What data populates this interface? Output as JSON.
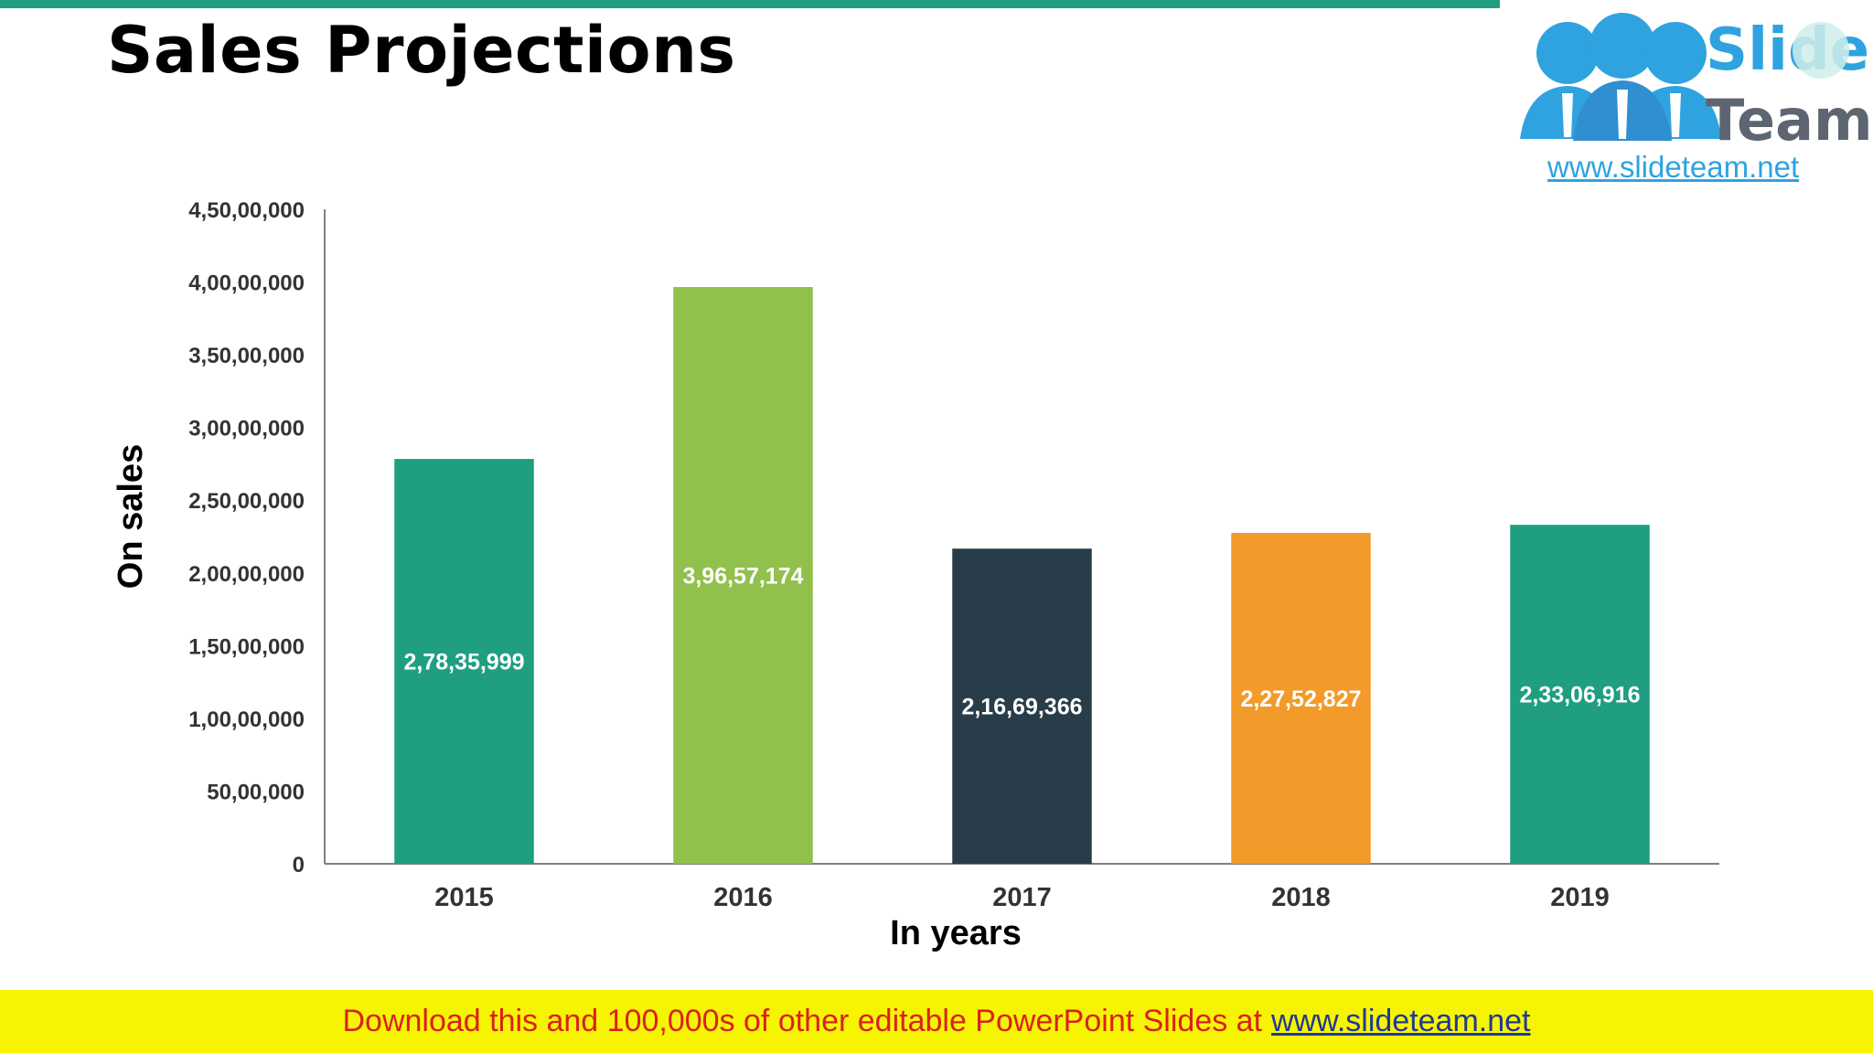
{
  "slide": {
    "title": "Sales Projections",
    "accent_color": "#1f9e82"
  },
  "logo": {
    "icon": "people-group-icon",
    "word1": "Slide",
    "word2": "Team",
    "url": "www.slideteam.net"
  },
  "footer": {
    "text": "Download this and 100,000s of other editable PowerPoint Slides at",
    "link": "www.slideteam.net",
    "background": "#f7f402",
    "text_color": "#d9221c"
  },
  "chart_data": {
    "type": "bar",
    "title": "",
    "xlabel": "In years",
    "ylabel": "On sales",
    "categories": [
      "2015",
      "2016",
      "2017",
      "2018",
      "2019"
    ],
    "values": [
      27835999,
      39657174,
      21669366,
      22752827,
      23306916
    ],
    "value_labels": [
      "2,78,35,999",
      "3,96,57,174",
      "2,16,69,366",
      "2,27,52,827",
      "2,33,06,916"
    ],
    "bar_colors": [
      "#1f9e82",
      "#92c04c",
      "#283c4a",
      "#f29a2a",
      "#1f9e82"
    ],
    "ylim": [
      0,
      45000000
    ],
    "yticks": [
      0,
      5000000,
      10000000,
      15000000,
      20000000,
      25000000,
      30000000,
      35000000,
      40000000,
      45000000
    ],
    "ytick_labels": [
      "0",
      "50,00,000",
      "1,00,00,000",
      "1,50,00,000",
      "2,00,00,000",
      "2,50,00,000",
      "3,00,00,000",
      "3,50,00,000",
      "4,00,00,000",
      "4,50,00,000"
    ],
    "grid": false,
    "legend": "none"
  }
}
